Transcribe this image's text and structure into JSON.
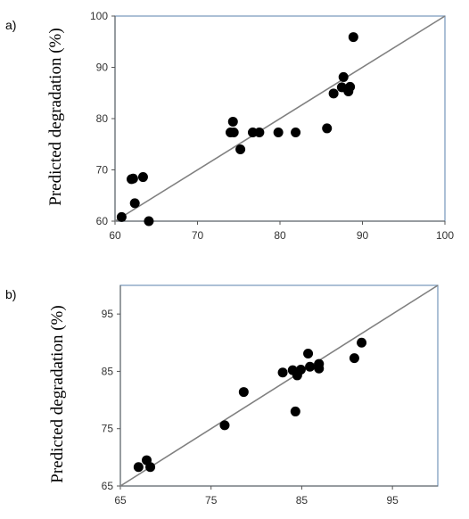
{
  "panels": [
    {
      "label": "a)"
    },
    {
      "label": "b)"
    }
  ],
  "chart_data": [
    {
      "type": "scatter",
      "title": "",
      "xlabel": "",
      "ylabel": "Predicted degradation (%)",
      "xlim": [
        60,
        100
      ],
      "ylim": [
        60,
        100
      ],
      "xticks": [
        60,
        70,
        80,
        90,
        100
      ],
      "yticks": [
        60,
        70,
        80,
        90,
        100
      ],
      "grid": false,
      "reference_line": {
        "from": [
          60,
          60
        ],
        "to": [
          100,
          100
        ]
      },
      "colors": {
        "points": "#000000",
        "line": "#808080",
        "frame": "#7f9fbf"
      },
      "series": [
        {
          "x": [
            60.8,
            62.0,
            62.2,
            62.4,
            63.4,
            64.1,
            74.0,
            74.3,
            74.4,
            75.2,
            76.7,
            77.5,
            79.8,
            81.9,
            85.7,
            86.5,
            87.5,
            87.7,
            88.3,
            88.5,
            88.9
          ],
          "y": [
            60.8,
            68.2,
            68.3,
            63.5,
            68.6,
            60.0,
            77.3,
            79.4,
            77.3,
            74.0,
            77.3,
            77.3,
            77.3,
            77.3,
            78.1,
            84.9,
            86.1,
            88.1,
            85.3,
            86.2,
            95.9
          ]
        }
      ]
    },
    {
      "type": "scatter",
      "title": "",
      "xlabel": "",
      "ylabel": "Predicted degradation (%)",
      "xlim": [
        65,
        100
      ],
      "ylim": [
        65,
        100
      ],
      "xticks": [
        65,
        75,
        85,
        95
      ],
      "yticks": [
        65,
        75,
        85,
        95
      ],
      "grid": false,
      "reference_line": {
        "from": [
          65,
          65
        ],
        "to": [
          100,
          100
        ]
      },
      "colors": {
        "points": "#000000",
        "line": "#808080",
        "frame": "#7f9fbf"
      },
      "series": [
        {
          "x": [
            67.0,
            67.9,
            68.3,
            76.5,
            78.6,
            82.9,
            84.0,
            84.3,
            84.5,
            84.9,
            85.7,
            85.9,
            86.9,
            86.9,
            90.8,
            91.6
          ],
          "y": [
            68.3,
            69.5,
            68.3,
            75.6,
            81.4,
            84.8,
            85.2,
            78.0,
            84.3,
            85.3,
            88.1,
            85.8,
            85.5,
            86.3,
            87.3,
            90.0
          ]
        }
      ]
    }
  ]
}
